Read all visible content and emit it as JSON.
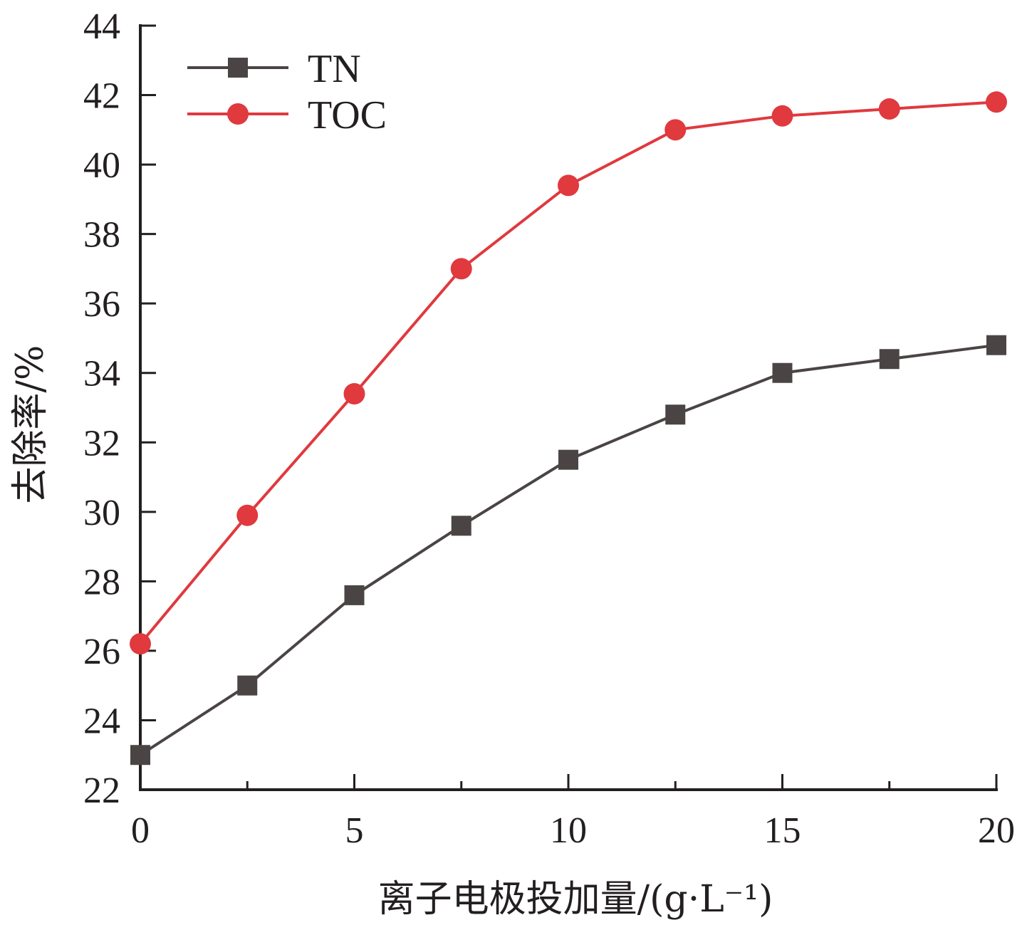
{
  "chart_data": {
    "type": "line",
    "xlabel": "离子电极投加量/(g·L⁻¹)",
    "ylabel": "去除率/%",
    "xlim": [
      0,
      20
    ],
    "ylim": [
      22,
      44
    ],
    "x_ticks": [
      "0",
      "5",
      "10",
      "15",
      "20"
    ],
    "y_ticks": [
      "22",
      "24",
      "26",
      "28",
      "30",
      "32",
      "34",
      "36",
      "38",
      "40",
      "42",
      "44"
    ],
    "grid": false,
    "legend_position": "top-left",
    "x": [
      0,
      2.5,
      5,
      7.5,
      10,
      12.5,
      15,
      17.5,
      20
    ],
    "series": [
      {
        "name": "TN",
        "marker": "square",
        "color": "#4a4544",
        "values": [
          23.0,
          25.0,
          27.6,
          29.6,
          31.5,
          32.8,
          34.0,
          34.4,
          34.8
        ]
      },
      {
        "name": "TOC",
        "marker": "circle",
        "color": "#e0393e",
        "values": [
          26.2,
          29.9,
          33.4,
          37.0,
          39.4,
          41.0,
          41.4,
          41.6,
          41.8
        ]
      }
    ]
  }
}
